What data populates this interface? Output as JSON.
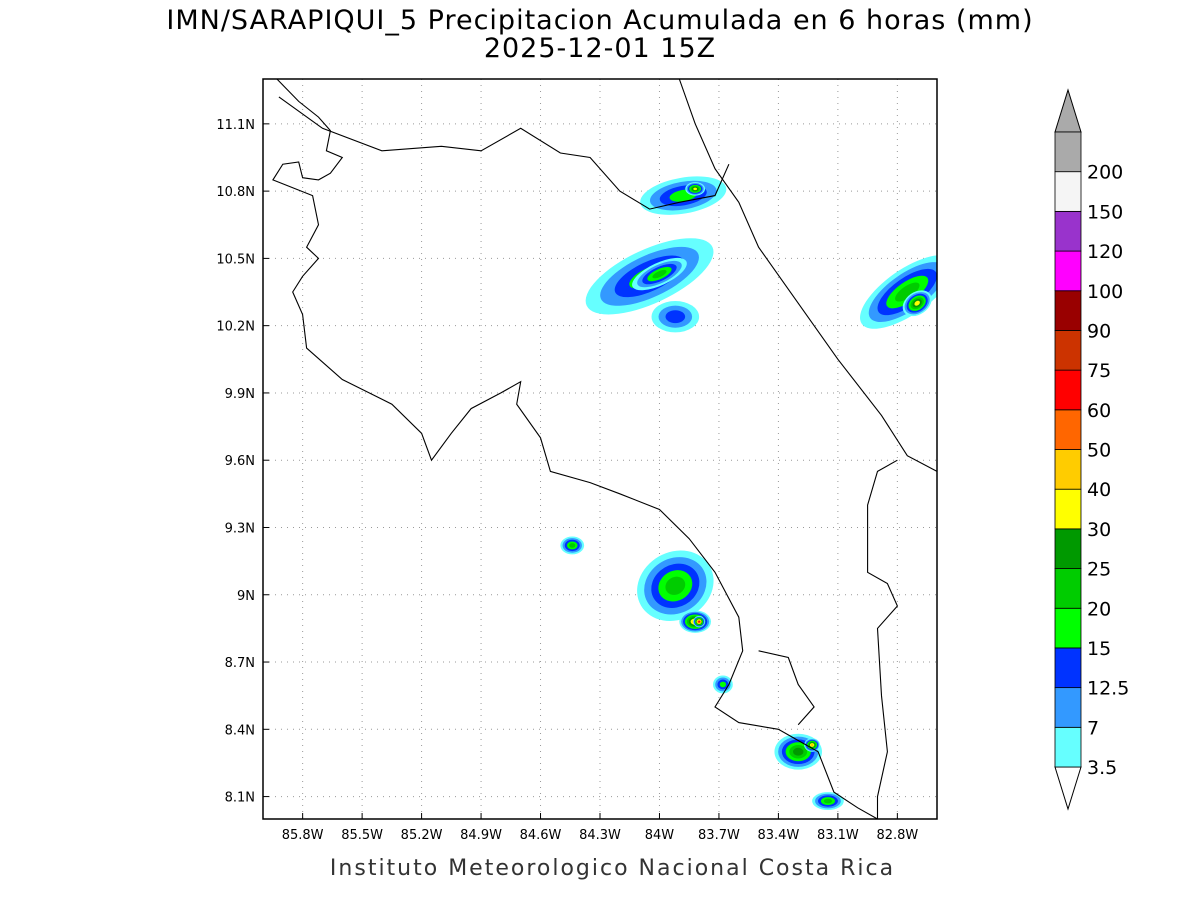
{
  "title": {
    "line1": "IMN/SARAPIQUI_5 Precipitacion Acumulada en 6 horas (mm)",
    "line2": "2025-12-01 15Z"
  },
  "footer": "Instituto Meteorologico Nacional Costa Rica",
  "map": {
    "lon_range": [
      -86.0,
      -82.6
    ],
    "lat_range": [
      8.0,
      11.3
    ],
    "lon_ticks": [
      {
        "value": -85.8,
        "label": "85.8W"
      },
      {
        "value": -85.5,
        "label": "85.5W"
      },
      {
        "value": -85.2,
        "label": "85.2W"
      },
      {
        "value": -84.9,
        "label": "84.9W"
      },
      {
        "value": -84.6,
        "label": "84.6W"
      },
      {
        "value": -84.3,
        "label": "84.3W"
      },
      {
        "value": -84.0,
        "label": "84W"
      },
      {
        "value": -83.7,
        "label": "83.7W"
      },
      {
        "value": -83.4,
        "label": "83.4W"
      },
      {
        "value": -83.1,
        "label": "83.1W"
      },
      {
        "value": -82.8,
        "label": "82.8W"
      }
    ],
    "lat_ticks": [
      {
        "value": 8.1,
        "label": "8.1N"
      },
      {
        "value": 8.4,
        "label": "8.4N"
      },
      {
        "value": 8.7,
        "label": "8.7N"
      },
      {
        "value": 9.0,
        "label": "9N"
      },
      {
        "value": 9.3,
        "label": "9.3N"
      },
      {
        "value": 9.6,
        "label": "9.6N"
      },
      {
        "value": 9.9,
        "label": "9.9N"
      },
      {
        "value": 10.2,
        "label": "10.2N"
      },
      {
        "value": 10.5,
        "label": "10.5N"
      },
      {
        "value": 10.8,
        "label": "10.8N"
      },
      {
        "value": 11.1,
        "label": "11.1N"
      }
    ],
    "grid": true,
    "coastline": [
      [
        -85.93,
        11.3
      ],
      [
        -85.82,
        11.2
      ],
      [
        -85.72,
        11.13
      ],
      [
        -85.66,
        11.07
      ],
      [
        -85.68,
        10.98
      ],
      [
        -85.6,
        10.95
      ],
      [
        -85.66,
        10.88
      ],
      [
        -85.72,
        10.85
      ],
      [
        -85.8,
        10.86
      ],
      [
        -85.82,
        10.93
      ],
      [
        -85.9,
        10.92
      ],
      [
        -85.95,
        10.85
      ],
      [
        -85.75,
        10.78
      ],
      [
        -85.72,
        10.65
      ],
      [
        -85.78,
        10.55
      ],
      [
        -85.72,
        10.5
      ],
      [
        -85.8,
        10.42
      ],
      [
        -85.85,
        10.35
      ],
      [
        -85.8,
        10.25
      ],
      [
        -85.78,
        10.1
      ],
      [
        -85.6,
        9.96
      ],
      [
        -85.35,
        9.85
      ],
      [
        -85.2,
        9.72
      ],
      [
        -85.15,
        9.6
      ],
      [
        -85.05,
        9.72
      ],
      [
        -84.95,
        9.83
      ],
      [
        -84.8,
        9.9
      ],
      [
        -84.7,
        9.95
      ],
      [
        -84.72,
        9.85
      ],
      [
        -84.6,
        9.7
      ],
      [
        -84.55,
        9.55
      ],
      [
        -84.35,
        9.5
      ],
      [
        -84.2,
        9.45
      ],
      [
        -84.0,
        9.38
      ],
      [
        -83.85,
        9.25
      ],
      [
        -83.72,
        9.1
      ],
      [
        -83.6,
        8.9
      ],
      [
        -83.58,
        8.75
      ],
      [
        -83.65,
        8.6
      ],
      [
        -83.72,
        8.5
      ],
      [
        -83.6,
        8.43
      ],
      [
        -83.4,
        8.4
      ],
      [
        -83.3,
        8.35
      ],
      [
        -83.2,
        8.3
      ],
      [
        -83.12,
        8.12
      ],
      [
        -83.0,
        8.05
      ],
      [
        -82.9,
        8.0
      ]
    ],
    "coastline_caribbean": [
      [
        -83.9,
        11.3
      ],
      [
        -83.82,
        11.1
      ],
      [
        -83.72,
        10.9
      ],
      [
        -83.6,
        10.75
      ],
      [
        -83.5,
        10.55
      ],
      [
        -83.3,
        10.3
      ],
      [
        -83.1,
        10.05
      ],
      [
        -82.88,
        9.8
      ],
      [
        -82.75,
        9.62
      ],
      [
        -82.6,
        9.55
      ]
    ],
    "border_nicaragua": [
      [
        -85.92,
        11.22
      ],
      [
        -85.7,
        11.08
      ],
      [
        -85.4,
        10.98
      ],
      [
        -85.1,
        11.0
      ],
      [
        -84.9,
        10.98
      ],
      [
        -84.7,
        11.08
      ],
      [
        -84.5,
        10.97
      ],
      [
        -84.35,
        10.95
      ],
      [
        -84.2,
        10.8
      ],
      [
        -84.05,
        10.72
      ],
      [
        -83.9,
        10.75
      ],
      [
        -83.72,
        10.78
      ],
      [
        -83.65,
        10.92
      ]
    ],
    "border_panama": [
      [
        -82.8,
        9.6
      ],
      [
        -82.9,
        9.55
      ],
      [
        -82.95,
        9.4
      ],
      [
        -82.95,
        9.1
      ],
      [
        -82.85,
        9.05
      ],
      [
        -82.8,
        8.95
      ],
      [
        -82.9,
        8.85
      ],
      [
        -82.88,
        8.55
      ],
      [
        -82.85,
        8.3
      ],
      [
        -82.9,
        8.1
      ],
      [
        -82.9,
        8.0
      ]
    ],
    "osa_inlet": [
      [
        -83.5,
        8.75
      ],
      [
        -83.35,
        8.72
      ],
      [
        -83.3,
        8.6
      ],
      [
        -83.22,
        8.5
      ],
      [
        -83.3,
        8.42
      ]
    ]
  },
  "colorbar": {
    "levels": [
      "3.5",
      "7",
      "12.5",
      "15",
      "20",
      "25",
      "30",
      "40",
      "50",
      "60",
      "75",
      "90",
      "100",
      "120",
      "150",
      "200"
    ],
    "colors": [
      "#66ffff",
      "#3399ff",
      "#0033ff",
      "#00ff00",
      "#00cc00",
      "#009900",
      "#ffff00",
      "#ffcc00",
      "#ff6600",
      "#ff0000",
      "#cc3300",
      "#990000",
      "#ff00ff",
      "#9933cc",
      "#f5f5f5",
      "#aaaaaa"
    ],
    "over_color": "#aaaaaa",
    "under_color": "#ffffff"
  },
  "precip_cells": [
    {
      "lon": -84.05,
      "lat": 10.42,
      "rx": 0.35,
      "ry": 0.12,
      "rot": -25,
      "level": 3
    },
    {
      "lon": -84.0,
      "lat": 10.43,
      "rx": 0.15,
      "ry": 0.05,
      "rot": -25,
      "level": 4
    },
    {
      "lon": -83.88,
      "lat": 10.78,
      "rx": 0.22,
      "ry": 0.08,
      "rot": -10,
      "level": 3
    },
    {
      "lon": -83.82,
      "lat": 10.81,
      "rx": 0.05,
      "ry": 0.03,
      "rot": 0,
      "level": 6
    },
    {
      "lon": -83.92,
      "lat": 10.24,
      "rx": 0.12,
      "ry": 0.07,
      "rot": 0,
      "level": 2
    },
    {
      "lon": -83.92,
      "lat": 9.04,
      "rx": 0.2,
      "ry": 0.15,
      "rot": -30,
      "level": 4
    },
    {
      "lon": -83.82,
      "lat": 8.88,
      "rx": 0.08,
      "ry": 0.05,
      "rot": 0,
      "level": 7
    },
    {
      "lon": -83.8,
      "lat": 8.88,
      "rx": 0.03,
      "ry": 0.025,
      "rot": 0,
      "level": 9
    },
    {
      "lon": -84.44,
      "lat": 9.22,
      "rx": 0.06,
      "ry": 0.04,
      "rot": 0,
      "level": 4
    },
    {
      "lon": -83.3,
      "lat": 8.3,
      "rx": 0.12,
      "ry": 0.08,
      "rot": 0,
      "level": 5
    },
    {
      "lon": -83.23,
      "lat": 8.33,
      "rx": 0.04,
      "ry": 0.03,
      "rot": 0,
      "level": 7
    },
    {
      "lon": -82.75,
      "lat": 10.35,
      "rx": 0.28,
      "ry": 0.1,
      "rot": -35,
      "level": 4
    },
    {
      "lon": -82.7,
      "lat": 10.3,
      "rx": 0.08,
      "ry": 0.05,
      "rot": -35,
      "level": 6
    },
    {
      "lon": -83.15,
      "lat": 8.08,
      "rx": 0.08,
      "ry": 0.04,
      "rot": 0,
      "level": 4
    },
    {
      "lon": -83.68,
      "lat": 8.6,
      "rx": 0.05,
      "ry": 0.04,
      "rot": 0,
      "level": 3
    }
  ]
}
